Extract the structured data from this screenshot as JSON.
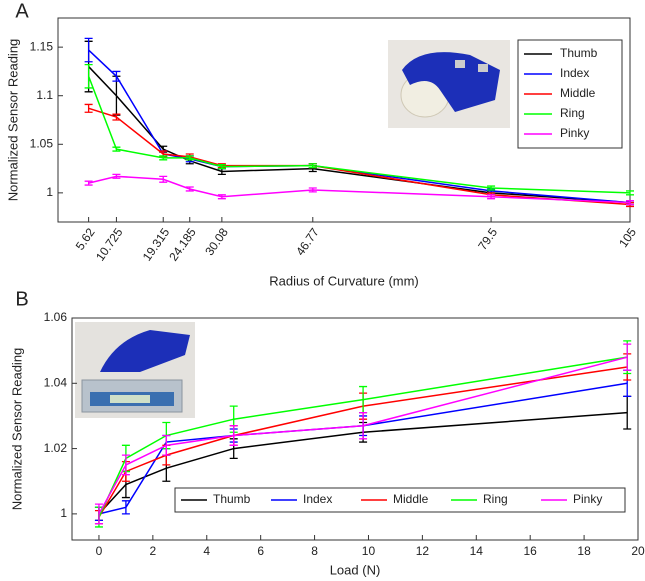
{
  "chart_data": [
    {
      "type": "line",
      "panel_label": "A",
      "xlabel": "Radius of Curvature (mm)",
      "ylabel": "Normalized Sensor Reading",
      "x": [
        5.62,
        10.725,
        19.315,
        24.185,
        30.08,
        46.77,
        79.5,
        105
      ],
      "xlim": [
        0,
        105
      ],
      "xticks": [
        5.62,
        10.725,
        19.315,
        24.185,
        30.08,
        46.77,
        79.5,
        105
      ],
      "ylim": [
        0.97,
        1.18
      ],
      "yticks": [
        1,
        1.05,
        1.1,
        1.15
      ],
      "legend": "upper right",
      "series": [
        {
          "name": "Thumb",
          "color": "#000000",
          "values": [
            1.13,
            1.1,
            1.045,
            1.033,
            1.022,
            1.025,
            1.0,
            0.99
          ],
          "errors": [
            0.026,
            0.02,
            0.003,
            0.003,
            0.003,
            0.003,
            0.002,
            0.002
          ]
        },
        {
          "name": "Index",
          "color": "#0000ff",
          "values": [
            1.147,
            1.12,
            1.04,
            1.035,
            1.027,
            1.028,
            1.002,
            0.99
          ],
          "errors": [
            0.012,
            0.005,
            0.003,
            0.003,
            0.002,
            0.002,
            0.002,
            0.002
          ]
        },
        {
          "name": "Middle",
          "color": "#ff0000",
          "values": [
            1.087,
            1.078,
            1.04,
            1.037,
            1.028,
            1.028,
            0.998,
            0.988
          ],
          "errors": [
            0.004,
            0.003,
            0.003,
            0.003,
            0.002,
            0.002,
            0.002,
            0.002
          ]
        },
        {
          "name": "Ring",
          "color": "#00ff00",
          "values": [
            1.12,
            1.045,
            1.036,
            1.036,
            1.027,
            1.028,
            1.005,
            1.0
          ],
          "errors": [
            0.012,
            0.002,
            0.002,
            0.002,
            0.002,
            0.002,
            0.002,
            0.002
          ]
        },
        {
          "name": "Pinky",
          "color": "#ff00ff",
          "values": [
            1.01,
            1.017,
            1.014,
            1.004,
            0.996,
            1.003,
            0.996,
            0.99
          ],
          "errors": [
            0.002,
            0.002,
            0.003,
            0.002,
            0.002,
            0.002,
            0.002,
            0.002
          ]
        }
      ]
    },
    {
      "type": "line",
      "panel_label": "B",
      "xlabel": "Load (N)",
      "ylabel": "Normalized Sensor Reading",
      "x": [
        0,
        1,
        2.5,
        5,
        9.8,
        19.6
      ],
      "xlim": [
        -1,
        20
      ],
      "xticks": [
        0,
        2,
        4,
        6,
        8,
        10,
        12,
        14,
        16,
        18,
        20
      ],
      "ylim": [
        0.992,
        1.06
      ],
      "yticks": [
        1,
        1.02,
        1.04,
        1.06
      ],
      "legend": "lower right",
      "series": [
        {
          "name": "Thumb",
          "color": "#000000",
          "values": [
            1.0,
            1.009,
            1.014,
            1.02,
            1.025,
            1.031
          ],
          "errors": [
            0.002,
            0.004,
            0.004,
            0.003,
            0.003,
            0.005
          ]
        },
        {
          "name": "Index",
          "color": "#0000ff",
          "values": [
            1.0,
            1.002,
            1.022,
            1.024,
            1.027,
            1.04
          ],
          "errors": [
            0.002,
            0.002,
            0.002,
            0.002,
            0.003,
            0.004
          ]
        },
        {
          "name": "Middle",
          "color": "#ff0000",
          "values": [
            0.999,
            1.013,
            1.018,
            1.024,
            1.033,
            1.045
          ],
          "errors": [
            0.002,
            0.003,
            0.003,
            0.003,
            0.004,
            0.004
          ]
        },
        {
          "name": "Ring",
          "color": "#00ff00",
          "values": [
            0.999,
            1.017,
            1.024,
            1.029,
            1.035,
            1.048
          ],
          "errors": [
            0.003,
            0.004,
            0.004,
            0.004,
            0.004,
            0.005
          ]
        },
        {
          "name": "Pinky",
          "color": "#ff00ff",
          "values": [
            1.0,
            1.015,
            1.021,
            1.024,
            1.027,
            1.048
          ],
          "errors": [
            0.003,
            0.003,
            0.003,
            0.003,
            0.004,
            0.004
          ]
        }
      ]
    }
  ]
}
